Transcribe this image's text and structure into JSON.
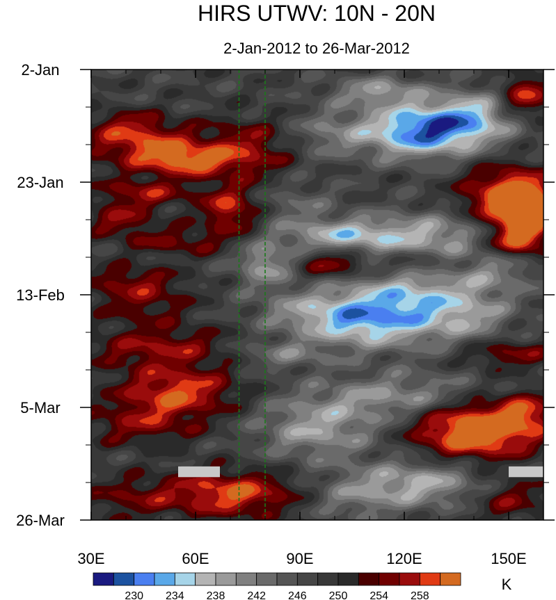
{
  "chart_data": {
    "type": "heatmap",
    "title": "HIRS UTWV: 10N - 20N",
    "subtitle": "2-Jan-2012 to 26-Mar-2012",
    "x_axis": {
      "min": 30,
      "max": 160,
      "ticks": [
        30,
        60,
        90,
        120,
        150
      ],
      "tick_labels": [
        "30E",
        "60E",
        "90E",
        "120E",
        "150E"
      ]
    },
    "y_axis": {
      "min_day": 0,
      "max_day": 84,
      "ticks": [
        0,
        21,
        42,
        63,
        84
      ],
      "tick_labels": [
        "2-Jan",
        "23-Jan",
        "13-Feb",
        "5-Mar",
        "26-Mar"
      ],
      "minor_tick_step_days": 7
    },
    "reference_lines_lon": [
      72.5,
      80
    ],
    "colorbar": {
      "levels": [
        226,
        228,
        230,
        232,
        234,
        236,
        238,
        240,
        242,
        244,
        246,
        248,
        250,
        252,
        254,
        256,
        258,
        260
      ],
      "labels": [
        "230",
        "234",
        "238",
        "242",
        "246",
        "250",
        "254",
        "258"
      ],
      "label_values": [
        230,
        234,
        238,
        242,
        246,
        250,
        254,
        258
      ],
      "colors": [
        "#1a1a80",
        "#1c52a0",
        "#4a7ff0",
        "#5aa8e8",
        "#a6d4e8",
        "#b4b4b4",
        "#9a9a9a",
        "#808080",
        "#6a6a6a",
        "#555555",
        "#464646",
        "#383838",
        "#2a2a2a",
        "#4a0000",
        "#700000",
        "#9a0c0c",
        "#e03a14",
        "#d46a20"
      ],
      "unit": "K"
    },
    "missing_boxes": [
      {
        "lon0": 55,
        "lon1": 67,
        "day0": 74,
        "day1": 76
      },
      {
        "lon0": 150,
        "lon1": 160,
        "day0": 74,
        "day1": 76
      }
    ],
    "features": [
      {
        "lon": 130,
        "day": 10,
        "amp": -14,
        "slon": 14,
        "sday": 3
      },
      {
        "lon": 113,
        "day": 4,
        "amp": -8,
        "slon": 10,
        "sday": 2
      },
      {
        "lon": 124,
        "day": 13,
        "amp": -9,
        "slon": 12,
        "sday": 3
      },
      {
        "lon": 98,
        "day": 12,
        "amp": -5,
        "slon": 8,
        "sday": 3
      },
      {
        "lon": 45,
        "day": 14,
        "amp": 10,
        "slon": 12,
        "sday": 3
      },
      {
        "lon": 75,
        "day": 15,
        "amp": 8,
        "slon": 9,
        "sday": 4
      },
      {
        "lon": 40,
        "day": 10,
        "amp": 5,
        "slon": 8,
        "sday": 2
      },
      {
        "lon": 58,
        "day": 17,
        "amp": 10,
        "slon": 9,
        "sday": 2
      },
      {
        "lon": 155,
        "day": 5,
        "amp": 10,
        "slon": 5,
        "sday": 3
      },
      {
        "lon": 140,
        "day": 7,
        "amp": -5,
        "slon": 6,
        "sday": 3
      },
      {
        "lon": 150,
        "day": 24,
        "amp": 15,
        "slon": 9,
        "sday": 4
      },
      {
        "lon": 155,
        "day": 28,
        "amp": 14,
        "slon": 5,
        "sday": 4
      },
      {
        "lon": 150,
        "day": 32,
        "amp": 9,
        "slon": 7,
        "sday": 2
      },
      {
        "lon": 45,
        "day": 23,
        "amp": 8,
        "slon": 10,
        "sday": 2
      },
      {
        "lon": 70,
        "day": 26,
        "amp": 10,
        "slon": 6,
        "sday": 3
      },
      {
        "lon": 38,
        "day": 28,
        "amp": 7,
        "slon": 7,
        "sday": 2
      },
      {
        "lon": 55,
        "day": 32,
        "amp": 6,
        "slon": 12,
        "sday": 2
      },
      {
        "lon": 125,
        "day": 31,
        "amp": -10,
        "slon": 20,
        "sday": 3
      },
      {
        "lon": 100,
        "day": 31,
        "amp": -7,
        "slon": 10,
        "sday": 2
      },
      {
        "lon": 88,
        "day": 25,
        "amp": -4,
        "slon": 8,
        "sday": 3
      },
      {
        "lon": 80,
        "day": 36,
        "amp": -9,
        "slon": 6,
        "sday": 3
      },
      {
        "lon": 100,
        "day": 36,
        "amp": 9,
        "slon": 8,
        "sday": 2
      },
      {
        "lon": 125,
        "day": 36,
        "amp": 6,
        "slon": 10,
        "sday": 2
      },
      {
        "lon": 145,
        "day": 38,
        "amp": -6,
        "slon": 10,
        "sday": 3
      },
      {
        "lon": 40,
        "day": 39,
        "amp": 5,
        "slon": 10,
        "sday": 2
      },
      {
        "lon": 120,
        "day": 44,
        "amp": -14,
        "slon": 14,
        "sday": 5
      },
      {
        "lon": 105,
        "day": 47,
        "amp": -8,
        "slon": 10,
        "sday": 3
      },
      {
        "lon": 90,
        "day": 45,
        "amp": -6,
        "slon": 10,
        "sday": 3
      },
      {
        "lon": 45,
        "day": 43,
        "amp": 6,
        "slon": 10,
        "sday": 3
      },
      {
        "lon": 140,
        "day": 46,
        "amp": -5,
        "slon": 8,
        "sday": 3
      },
      {
        "lon": 85,
        "day": 53,
        "amp": -6,
        "slon": 10,
        "sday": 2
      },
      {
        "lon": 50,
        "day": 52,
        "amp": 8,
        "slon": 15,
        "sday": 3
      },
      {
        "lon": 150,
        "day": 53,
        "amp": 7,
        "slon": 10,
        "sday": 2
      },
      {
        "lon": 120,
        "day": 61,
        "amp": -8,
        "slon": 18,
        "sday": 3
      },
      {
        "lon": 55,
        "day": 60,
        "amp": 11,
        "slon": 12,
        "sday": 3
      },
      {
        "lon": 140,
        "day": 67,
        "amp": 17,
        "slon": 12,
        "sday": 4
      },
      {
        "lon": 155,
        "day": 64,
        "amp": 8,
        "slon": 6,
        "sday": 3
      },
      {
        "lon": 95,
        "day": 67,
        "amp": -9,
        "slon": 12,
        "sday": 4
      },
      {
        "lon": 45,
        "day": 66,
        "amp": 7,
        "slon": 12,
        "sday": 3
      },
      {
        "lon": 125,
        "day": 77,
        "amp": -10,
        "slon": 14,
        "sday": 3
      },
      {
        "lon": 70,
        "day": 79,
        "amp": 12,
        "slon": 14,
        "sday": 3
      },
      {
        "lon": 40,
        "day": 80,
        "amp": 5,
        "slon": 10,
        "sday": 3
      },
      {
        "lon": 105,
        "day": 80,
        "amp": -5,
        "slon": 10,
        "sday": 3
      },
      {
        "lon": 150,
        "day": 80,
        "amp": 7,
        "slon": 8,
        "sday": 3
      }
    ]
  }
}
